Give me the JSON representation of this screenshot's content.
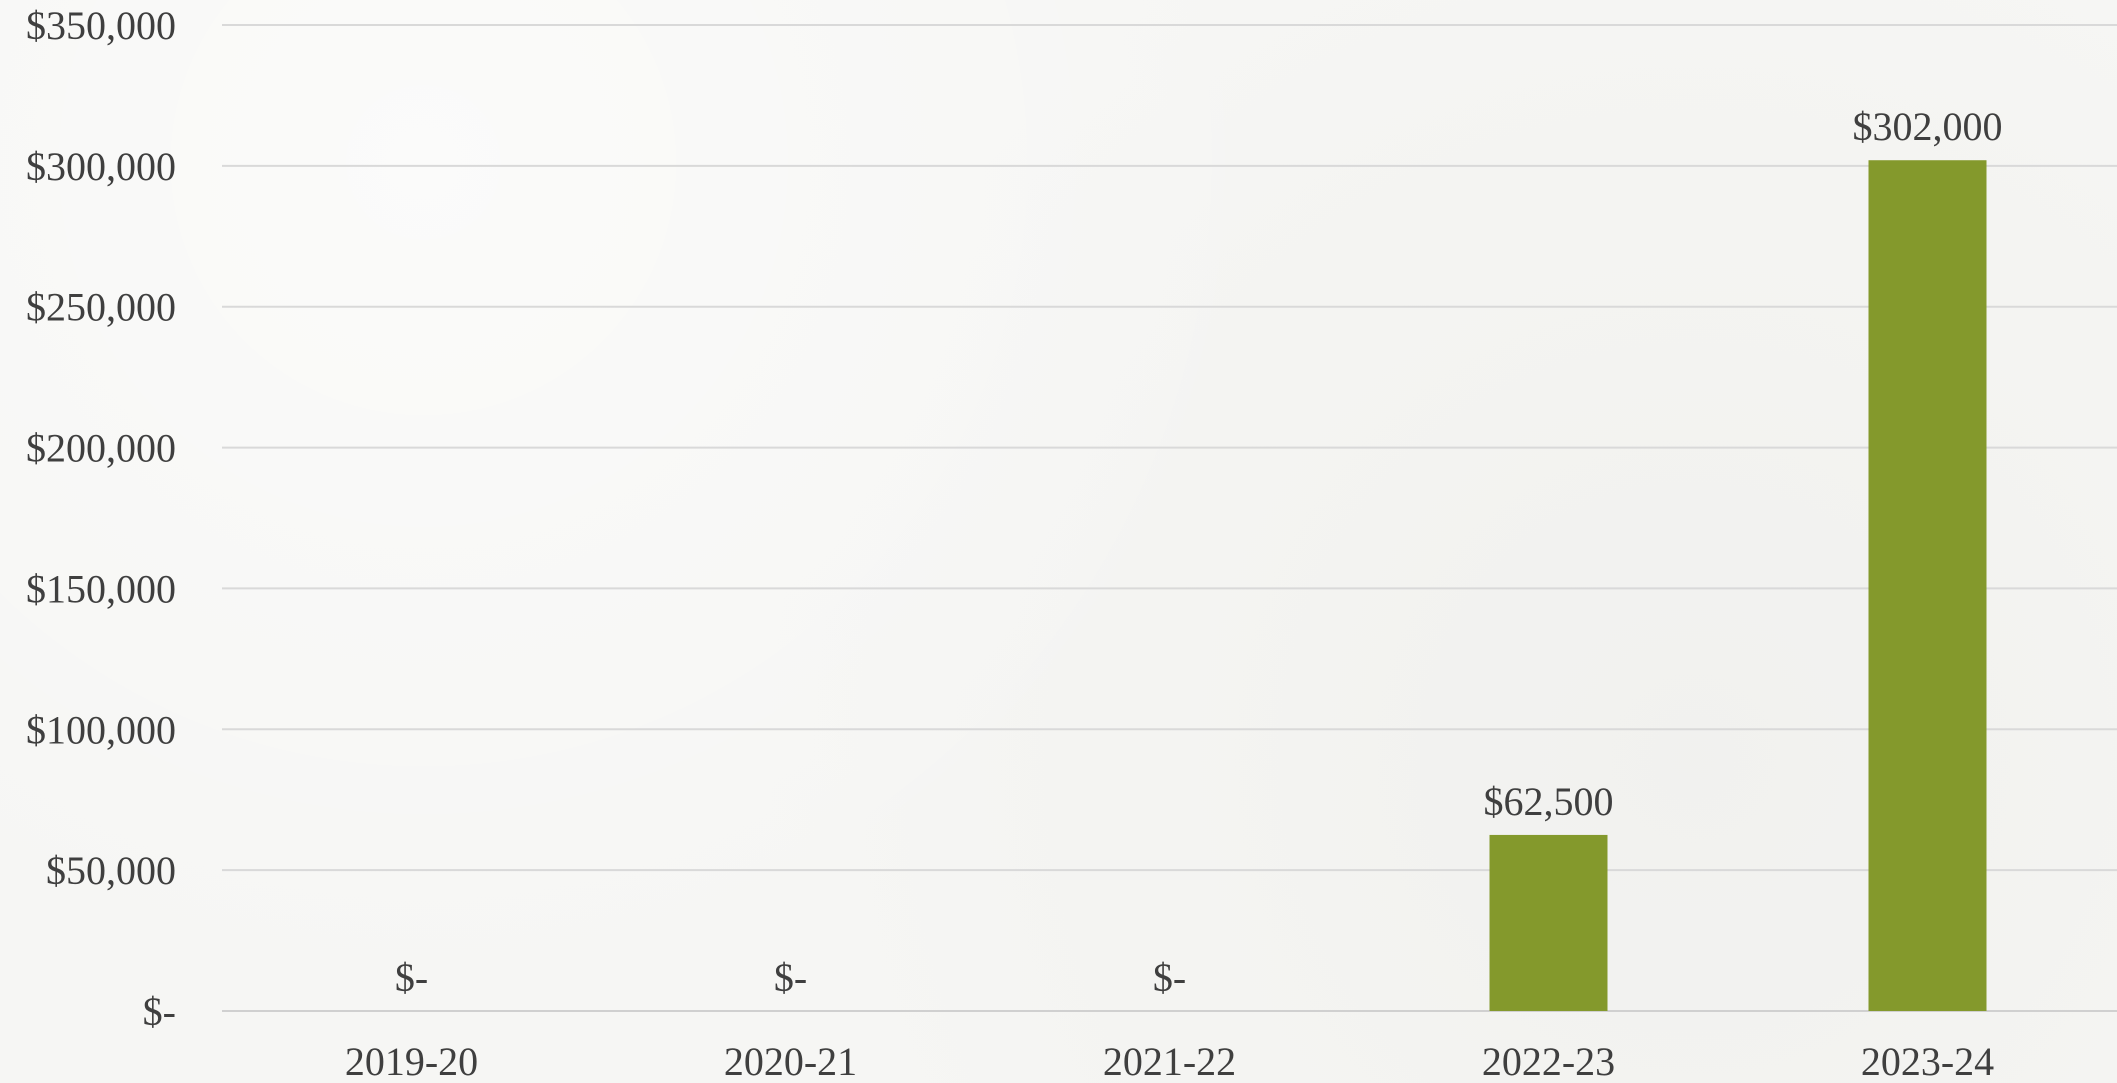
{
  "chart_data": {
    "type": "bar",
    "title": "",
    "xlabel": "",
    "ylabel": "",
    "categories": [
      "2019-20",
      "2020-21",
      "2021-22",
      "2022-23",
      "2023-24"
    ],
    "values": [
      0,
      0,
      0,
      62500,
      302000
    ],
    "data_labels": [
      "$-",
      "$-",
      "$-",
      "$62,500",
      "$302,000"
    ],
    "ylim": [
      0,
      350000
    ],
    "y_ticks": [
      0,
      50000,
      100000,
      150000,
      200000,
      250000,
      300000,
      350000
    ],
    "y_tick_labels": [
      "$-",
      "$50,000",
      "$100,000",
      "$150,000",
      "$200,000",
      "$250,000",
      "$300,000",
      "$350,000"
    ],
    "grid": true,
    "legend": "none",
    "colors": {
      "bar": "#84992c",
      "text": "#3f3f3f",
      "grid": "#d9d9d9"
    }
  }
}
